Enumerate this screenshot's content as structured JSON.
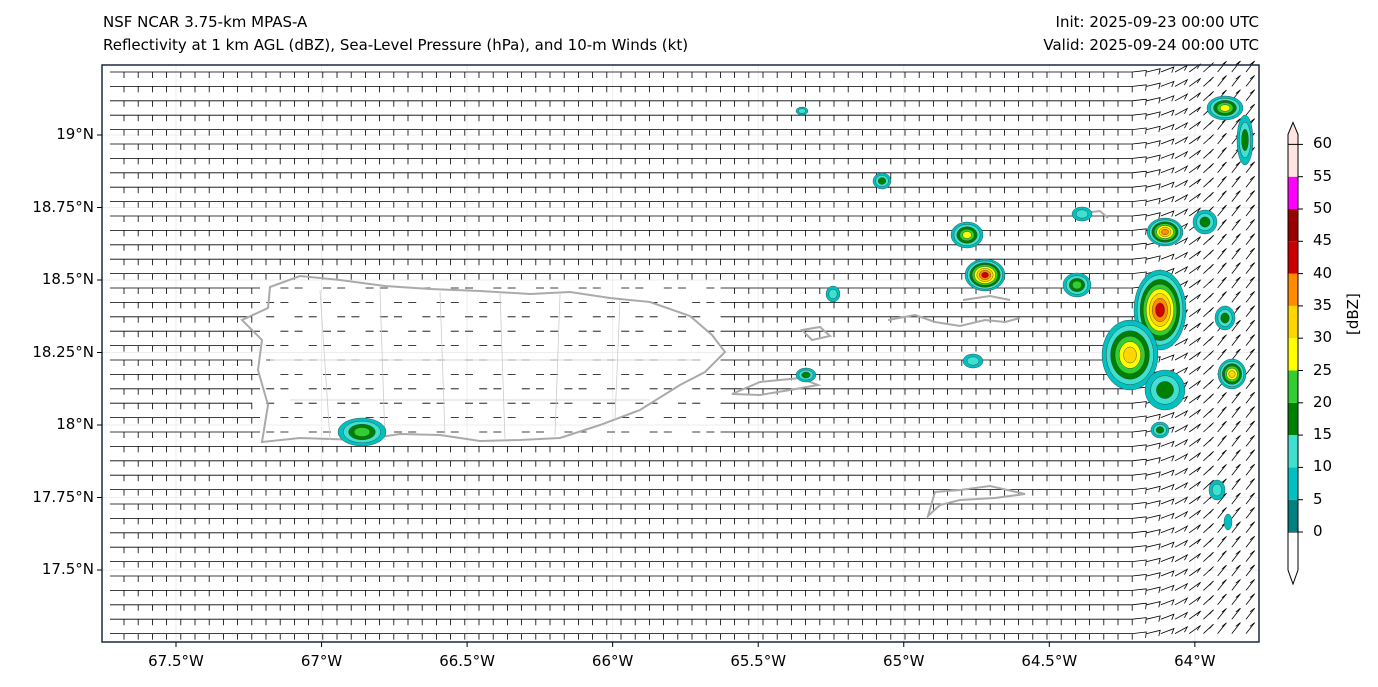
{
  "header": {
    "model": "NSF NCAR 3.75-km MPAS-A",
    "fields": "Reflectivity at 1 km AGL (dBZ), Sea-Level Pressure (hPa), and 10-m Winds (kt)",
    "init": "Init: 2025-09-23 00:00 UTC",
    "valid": "Valid: 2025-09-24 00:00 UTC"
  },
  "axes": {
    "lat_ticks": [
      {
        "label": "19°N",
        "value": 19
      },
      {
        "label": "18.75°N",
        "value": 18.75
      },
      {
        "label": "18.5°N",
        "value": 18.5
      },
      {
        "label": "18.25°N",
        "value": 18.25
      },
      {
        "label": "18°N",
        "value": 18
      },
      {
        "label": "17.75°N",
        "value": 17.75
      },
      {
        "label": "17.5°N",
        "value": 17.5
      }
    ],
    "lon_ticks": [
      {
        "label": "67.5°W",
        "value": -67.5
      },
      {
        "label": "67°W",
        "value": -67
      },
      {
        "label": "66.5°W",
        "value": -66.5
      },
      {
        "label": "66°W",
        "value": -66
      },
      {
        "label": "65.5°W",
        "value": -65.5
      },
      {
        "label": "65°W",
        "value": -65
      },
      {
        "label": "64.5°W",
        "value": -64.5
      },
      {
        "label": "64°W",
        "value": -64
      }
    ]
  },
  "colorbar": {
    "label": "[dBZ]",
    "levels": [
      "0",
      "5",
      "10",
      "15",
      "20",
      "25",
      "30",
      "35",
      "40",
      "45",
      "50",
      "55",
      "60"
    ],
    "colors": [
      "#008080",
      "#00c0c0",
      "#40e0d0",
      "#008000",
      "#32cd32",
      "#ffff00",
      "#ffd700",
      "#ff8c00",
      "#cc0000",
      "#990000",
      "#ff00ff",
      "#ffe4e1"
    ]
  }
}
